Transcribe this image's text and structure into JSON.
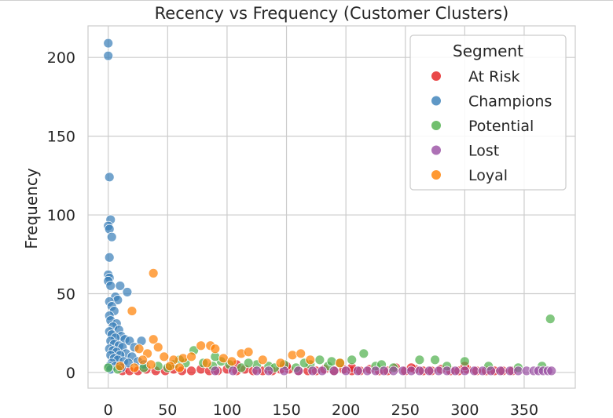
{
  "chart_data": {
    "type": "scatter",
    "title": "Recency vs Frequency (Customer Clusters)",
    "xlabel": "",
    "ylabel": "Frequency",
    "xlim": [
      -17,
      393
    ],
    "ylim": [
      -10,
      220
    ],
    "xticks": [
      0,
      50,
      100,
      150,
      200,
      250,
      300,
      350
    ],
    "yticks": [
      0,
      50,
      100,
      150,
      200
    ],
    "grid": true,
    "legend": {
      "title": "Segment",
      "placement": "top-right"
    },
    "series": [
      {
        "name": "At Risk",
        "color": "#e41a1c",
        "points": [
          [
            12,
            1
          ],
          [
            18,
            1
          ],
          [
            25,
            1
          ],
          [
            32,
            2
          ],
          [
            40,
            1
          ],
          [
            48,
            1
          ],
          [
            55,
            2
          ],
          [
            62,
            1
          ],
          [
            70,
            1
          ],
          [
            78,
            2
          ],
          [
            85,
            1
          ],
          [
            92,
            1
          ],
          [
            100,
            2
          ],
          [
            108,
            1
          ],
          [
            115,
            2
          ],
          [
            122,
            1
          ],
          [
            130,
            1
          ],
          [
            138,
            1
          ],
          [
            145,
            2
          ],
          [
            152,
            2
          ],
          [
            160,
            1
          ],
          [
            168,
            1
          ],
          [
            175,
            1
          ],
          [
            182,
            2
          ],
          [
            190,
            1
          ],
          [
            198,
            2
          ],
          [
            205,
            1
          ],
          [
            212,
            1
          ],
          [
            220,
            2
          ],
          [
            228,
            1
          ],
          [
            235,
            1
          ],
          [
            242,
            3
          ],
          [
            250,
            1
          ],
          [
            258,
            2
          ],
          [
            265,
            1
          ],
          [
            272,
            1
          ],
          [
            280,
            2
          ],
          [
            288,
            1
          ],
          [
            295,
            1
          ],
          [
            302,
            2
          ],
          [
            310,
            1
          ],
          [
            318,
            1
          ],
          [
            325,
            1
          ],
          [
            332,
            1
          ],
          [
            340,
            1
          ],
          [
            108,
            5
          ],
          [
            150,
            4
          ],
          [
            205,
            3
          ],
          [
            255,
            3
          ],
          [
            300,
            4
          ]
        ]
      },
      {
        "name": "Champions",
        "color": "#377eb8",
        "points": [
          [
            0,
            209
          ],
          [
            0,
            201
          ],
          [
            1,
            124
          ],
          [
            2,
            97
          ],
          [
            0,
            93
          ],
          [
            1,
            91
          ],
          [
            3,
            86
          ],
          [
            1,
            73
          ],
          [
            0,
            62
          ],
          [
            1,
            60
          ],
          [
            0,
            58
          ],
          [
            2,
            55
          ],
          [
            10,
            55
          ],
          [
            16,
            51
          ],
          [
            6,
            48
          ],
          [
            8,
            46
          ],
          [
            1,
            45
          ],
          [
            3,
            42
          ],
          [
            5,
            39
          ],
          [
            1,
            36
          ],
          [
            2,
            33
          ],
          [
            7,
            31
          ],
          [
            4,
            29
          ],
          [
            9,
            27
          ],
          [
            1,
            26
          ],
          [
            3,
            24
          ],
          [
            11,
            23
          ],
          [
            6,
            22
          ],
          [
            14,
            21
          ],
          [
            2,
            20
          ],
          [
            18,
            20
          ],
          [
            28,
            20
          ],
          [
            5,
            18
          ],
          [
            9,
            17
          ],
          [
            12,
            16
          ],
          [
            22,
            16
          ],
          [
            1,
            15
          ],
          [
            4,
            14
          ],
          [
            7,
            13
          ],
          [
            15,
            12
          ],
          [
            2,
            11
          ],
          [
            10,
            11
          ],
          [
            20,
            10
          ],
          [
            5,
            9
          ],
          [
            8,
            8
          ],
          [
            13,
            7
          ],
          [
            25,
            7
          ],
          [
            3,
            6
          ],
          [
            17,
            6
          ],
          [
            30,
            5
          ],
          [
            1,
            4
          ],
          [
            6,
            4
          ],
          [
            11,
            3
          ],
          [
            2,
            2
          ]
        ]
      },
      {
        "name": "Potential",
        "color": "#4daf4a",
        "points": [
          [
            0,
            3
          ],
          [
            8,
            2
          ],
          [
            30,
            3
          ],
          [
            42,
            4
          ],
          [
            55,
            5
          ],
          [
            65,
            6
          ],
          [
            72,
            14
          ],
          [
            80,
            6
          ],
          [
            88,
            4
          ],
          [
            95,
            7
          ],
          [
            102,
            5
          ],
          [
            112,
            3
          ],
          [
            125,
            5
          ],
          [
            135,
            4
          ],
          [
            148,
            5
          ],
          [
            158,
            3
          ],
          [
            170,
            5
          ],
          [
            178,
            8
          ],
          [
            185,
            4
          ],
          [
            195,
            6
          ],
          [
            205,
            8
          ],
          [
            215,
            12
          ],
          [
            225,
            4
          ],
          [
            240,
            3
          ],
          [
            262,
            8
          ],
          [
            275,
            8
          ],
          [
            300,
            7
          ],
          [
            320,
            4
          ],
          [
            345,
            3
          ],
          [
            365,
            4
          ],
          [
            372,
            34
          ],
          [
            50,
            3
          ],
          [
            60,
            8
          ],
          [
            90,
            10
          ],
          [
            118,
            6
          ],
          [
            140,
            3
          ],
          [
            165,
            6
          ],
          [
            188,
            7
          ],
          [
            230,
            5
          ],
          [
            285,
            4
          ]
        ]
      },
      {
        "name": "Lost",
        "color": "#984ea3",
        "points": [
          [
            90,
            1
          ],
          [
            105,
            1
          ],
          [
            125,
            1
          ],
          [
            135,
            1
          ],
          [
            148,
            1
          ],
          [
            160,
            1
          ],
          [
            172,
            1
          ],
          [
            180,
            1
          ],
          [
            190,
            1
          ],
          [
            200,
            1
          ],
          [
            210,
            1
          ],
          [
            218,
            1
          ],
          [
            225,
            1
          ],
          [
            232,
            1
          ],
          [
            240,
            1
          ],
          [
            248,
            1
          ],
          [
            255,
            1
          ],
          [
            262,
            1
          ],
          [
            270,
            1
          ],
          [
            278,
            1
          ],
          [
            285,
            1
          ],
          [
            292,
            1
          ],
          [
            300,
            1
          ],
          [
            308,
            1
          ],
          [
            315,
            1
          ],
          [
            322,
            1
          ],
          [
            330,
            1
          ],
          [
            338,
            1
          ],
          [
            345,
            1
          ],
          [
            352,
            1
          ],
          [
            358,
            1
          ],
          [
            362,
            1
          ],
          [
            366,
            1
          ],
          [
            370,
            1
          ],
          [
            373,
            1
          ]
        ]
      },
      {
        "name": "Loyal",
        "color": "#ff7f00",
        "points": [
          [
            38,
            63
          ],
          [
            20,
            39
          ],
          [
            38,
            21
          ],
          [
            42,
            16
          ],
          [
            78,
            17
          ],
          [
            86,
            17
          ],
          [
            90,
            15
          ],
          [
            112,
            12
          ],
          [
            118,
            13
          ],
          [
            155,
            11
          ],
          [
            162,
            12
          ],
          [
            26,
            15
          ],
          [
            33,
            12
          ],
          [
            47,
            10
          ],
          [
            55,
            8
          ],
          [
            63,
            9
          ],
          [
            70,
            10
          ],
          [
            97,
            9
          ],
          [
            104,
            7
          ],
          [
            130,
            8
          ],
          [
            145,
            6
          ],
          [
            170,
            8
          ],
          [
            195,
            6
          ],
          [
            29,
            8
          ],
          [
            36,
            5
          ],
          [
            52,
            4
          ],
          [
            83,
            6
          ],
          [
            10,
            4
          ],
          [
            22,
            3
          ],
          [
            60,
            3
          ]
        ]
      }
    ]
  }
}
